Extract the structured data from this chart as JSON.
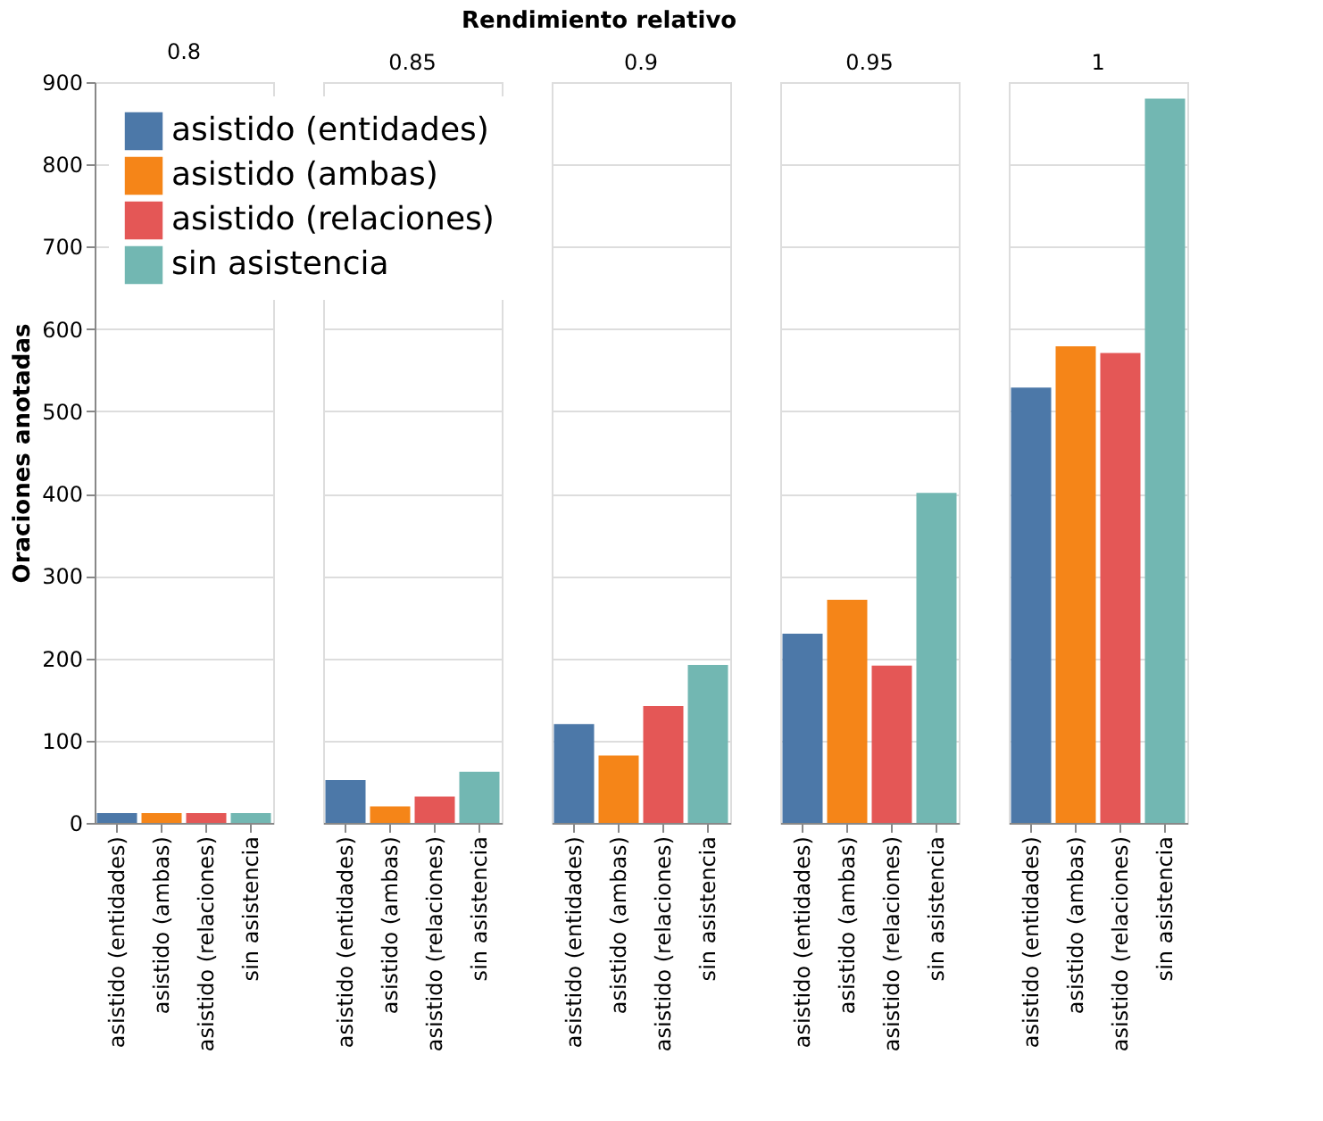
{
  "chart_data": [
    {
      "type": "bar",
      "title": "0.8",
      "annotations": [
        "Rendimiento relativo"
      ],
      "ylabel": "Oraciones anotadas",
      "categories": [
        "asistido (entidades)",
        "asistido (ambas)",
        "asistido (relaciones)",
        "sin asistencia"
      ],
      "series": [
        {
          "name": "asistido (entidades)",
          "color": "#4c78a8",
          "values": [
            12,
            null,
            null,
            null
          ]
        },
        {
          "name": "asistido (ambas)",
          "color": "#f58518",
          "values": [
            null,
            12,
            null,
            null
          ]
        },
        {
          "name": "asistido (relaciones)",
          "color": "#e45756",
          "values": [
            null,
            null,
            12,
            null
          ]
        },
        {
          "name": "sin asistencia",
          "color": "#72b7b2",
          "values": [
            null,
            null,
            null,
            12
          ]
        }
      ],
      "ylim": [
        0,
        900
      ],
      "yticks": [
        0,
        100,
        200,
        300,
        400,
        500,
        600,
        700,
        800,
        900
      ],
      "grid": "y",
      "legend": "top"
    },
    {
      "type": "bar",
      "title": "0.85",
      "categories": [
        "asistido (entidades)",
        "asistido (ambas)",
        "asistido (relaciones)",
        "sin asistencia"
      ],
      "series": [
        {
          "color": "#4c78a8",
          "values": [
            52,
            null,
            null,
            null
          ]
        },
        {
          "color": "#f58518",
          "values": [
            null,
            20,
            null,
            null
          ]
        },
        {
          "color": "#e45756",
          "values": [
            null,
            null,
            32,
            null
          ]
        },
        {
          "color": "#72b7b2",
          "values": [
            null,
            null,
            null,
            62
          ]
        }
      ],
      "ylim": [
        0,
        900
      ],
      "yticks": [
        0,
        100,
        200,
        300,
        400,
        500,
        600,
        700,
        800,
        900
      ],
      "grid": "y",
      "tick_labels": "x"
    },
    {
      "type": "bar",
      "title": "0.9",
      "categories": [
        "asistido (entidades)",
        "asistido (ambas)",
        "asistido (relaciones)",
        "sin asistencia"
      ],
      "series": [
        {
          "color": "#4c78a8",
          "values": [
            120,
            null,
            null,
            null
          ]
        },
        {
          "color": "#f58518",
          "values": [
            null,
            82,
            null,
            null
          ]
        },
        {
          "color": "#e45756",
          "values": [
            null,
            null,
            142,
            null
          ]
        },
        {
          "color": "#72b7b2",
          "values": [
            null,
            null,
            null,
            192
          ]
        }
      ],
      "ylim": [
        0,
        900
      ],
      "yticks": [
        0,
        100,
        200,
        300,
        400,
        500,
        600,
        700,
        800,
        900
      ],
      "grid": "y",
      "tick_labels": "x"
    },
    {
      "type": "bar",
      "title": "0.95",
      "categories": [
        "asistido (entidades)",
        "asistido (ambas)",
        "asistido (relaciones)",
        "sin asistencia"
      ],
      "series": [
        {
          "color": "#4c78a8",
          "values": [
            230,
            null,
            null,
            null
          ]
        },
        {
          "color": "#f58518",
          "values": [
            null,
            271,
            null,
            null
          ]
        },
        {
          "color": "#e45756",
          "values": [
            null,
            null,
            191,
            null
          ]
        },
        {
          "color": "#72b7b2",
          "values": [
            null,
            null,
            null,
            401
          ]
        }
      ],
      "ylim": [
        0,
        900
      ],
      "yticks": [
        0,
        100,
        200,
        300,
        400,
        500,
        600,
        700,
        800,
        900
      ],
      "grid": "y",
      "tick_labels": "x"
    },
    {
      "type": "bar",
      "title": "1",
      "categories": [
        "asistido (entidades)",
        "asistido (ambas)",
        "asistido (relaciones)",
        "sin asistencia"
      ],
      "series": [
        {
          "color": "#4c78a8",
          "values": [
            529,
            null,
            null,
            null
          ]
        },
        {
          "color": "#f58518",
          "values": [
            null,
            579,
            null,
            null
          ]
        },
        {
          "color": "#e45756",
          "values": [
            null,
            null,
            571,
            null
          ]
        },
        {
          "color": "#72b7b2",
          "values": [
            null,
            null,
            null,
            880
          ]
        }
      ],
      "ylim": [
        0,
        900
      ],
      "yticks": [
        0,
        100,
        200,
        300,
        400,
        500,
        600,
        700,
        800,
        900
      ],
      "grid": "y",
      "tick_labels": "x"
    }
  ]
}
